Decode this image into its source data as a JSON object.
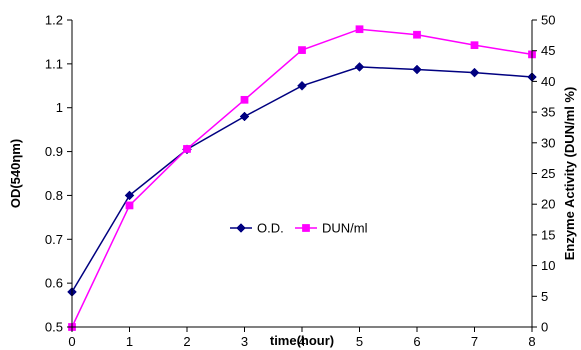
{
  "chart_data": {
    "type": "line",
    "title": "",
    "xlabel": "time(hour)",
    "ylabel_left": "OD(540ηm)",
    "ylabel_right": "Enzyme Activity (DUN/ml %)",
    "x": [
      0,
      1,
      2,
      3,
      4,
      5,
      6,
      7,
      8
    ],
    "x_ticks": [
      "0",
      "1",
      "2",
      "3",
      "4",
      "5",
      "6",
      "7",
      "8"
    ],
    "xlim": [
      0,
      8
    ],
    "ylim_left": [
      0.5,
      1.2
    ],
    "ylim_right": [
      0,
      50
    ],
    "y_left_ticks": [
      "0.5",
      "0.6",
      "0.7",
      "0.8",
      "0.9",
      "1",
      "1.1",
      "1.2"
    ],
    "y_right_ticks": [
      "0",
      "5",
      "10",
      "15",
      "20",
      "25",
      "30",
      "35",
      "40",
      "45",
      "50"
    ],
    "grid": false,
    "legend_position": "center",
    "series": [
      {
        "name": "O.D.",
        "axis": "left",
        "marker": "diamond",
        "color": "#000080",
        "values": [
          0.58,
          0.8,
          0.905,
          0.98,
          1.05,
          1.093,
          1.087,
          1.08,
          1.07
        ]
      },
      {
        "name": "DUN/ml",
        "axis": "right",
        "marker": "square",
        "color": "#ff00ff",
        "values": [
          0,
          19.8,
          29,
          37,
          45.1,
          48.5,
          47.6,
          45.9,
          44.4
        ]
      }
    ]
  }
}
